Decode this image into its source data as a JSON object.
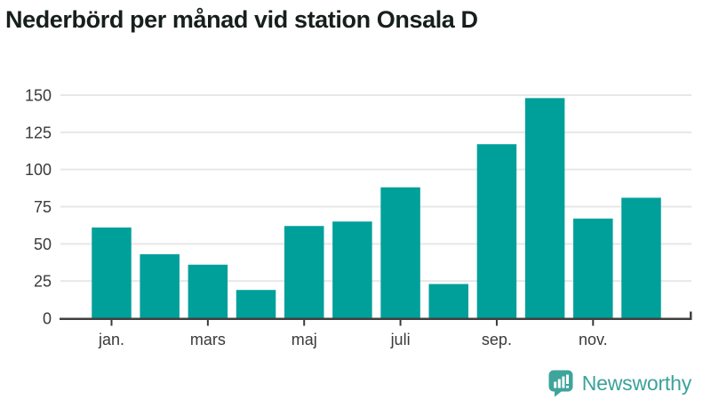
{
  "header": {
    "title": "Nederbörd per månad vid station Onsala D"
  },
  "chart_data": {
    "type": "bar",
    "title": "Nederbörd per månad vid station Onsala D",
    "bar_count": 12,
    "values": [
      61,
      43,
      36,
      19,
      62,
      65,
      88,
      23,
      117,
      148,
      67,
      81
    ],
    "x_tick_labels": [
      "jan.",
      "mars",
      "maj",
      "juli",
      "sep.",
      "nov."
    ],
    "x_tick_bar_indices": [
      0,
      2,
      4,
      6,
      8,
      10
    ],
    "y_ticks": [
      0,
      25,
      50,
      75,
      100,
      125,
      150
    ],
    "ylim": [
      0,
      150
    ],
    "grid": true,
    "legend": "none",
    "bar_color": "#00a09a",
    "gridline_color": "#e7e7e7",
    "axis_color": "#404040",
    "tick_label_color": "#3a3a3a"
  },
  "footer": {
    "brand": "Newsworthy",
    "brand_color": "#3ba29a",
    "logo_icon": "bar-chart-speech-bubble-icon",
    "logo_color": "#3fa49c"
  }
}
